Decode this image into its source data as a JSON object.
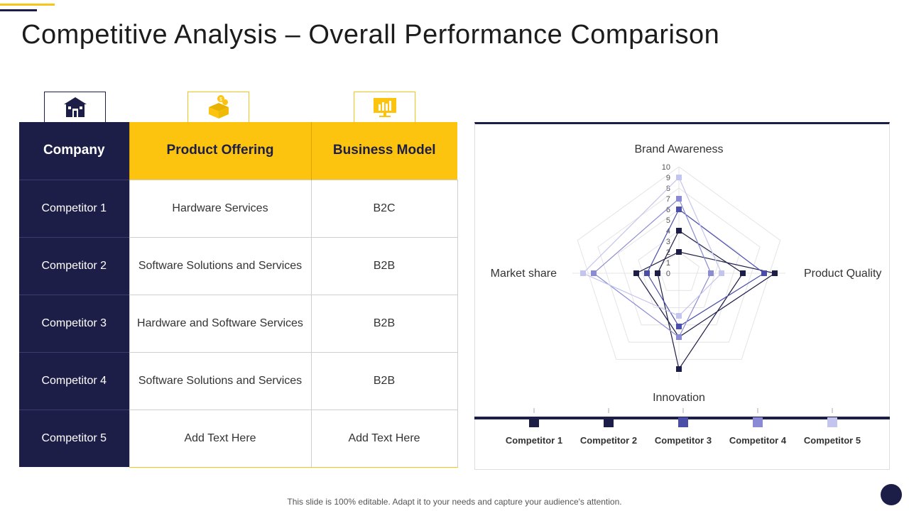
{
  "title": "Competitive Analysis – Overall Performance Comparison",
  "icons": [
    "building-icon",
    "money-box-icon",
    "chart-monitor-icon"
  ],
  "colors": {
    "navy": "#1d1e47",
    "yellow": "#fcc40f"
  },
  "table": {
    "headers": [
      "Company",
      "Product Offering",
      "Business Model"
    ],
    "rows": [
      [
        "Competitor 1",
        "Hardware Services",
        "B2C"
      ],
      [
        "Competitor 2",
        "Software Solutions and Services",
        "B2B"
      ],
      [
        "Competitor 3",
        "Hardware and Software Services",
        "B2B"
      ],
      [
        "Competitor 4",
        "Software Solutions and Services",
        "B2B"
      ],
      [
        "Competitor 5",
        "Add Text Here",
        "Add Text Here"
      ]
    ]
  },
  "chart_data": {
    "type": "radar",
    "axes": [
      "Brand Awareness",
      "Product Quality",
      "Innovation",
      "Market share"
    ],
    "scale": {
      "min": 0,
      "max": 10,
      "ticks": [
        "0",
        "1",
        "2",
        "3",
        "4",
        "5",
        "6",
        "7",
        "8",
        "9",
        "10"
      ]
    },
    "legend_position": "bottom",
    "series": [
      {
        "name": "Competitor 1",
        "color": "#1d1e47",
        "values": [
          4,
          6,
          9,
          2
        ]
      },
      {
        "name": "Competitor 2",
        "color": "#1d1e47",
        "values": [
          2,
          9,
          6,
          4
        ]
      },
      {
        "name": "Competitor 3",
        "color": "#4b4ea8",
        "values": [
          6,
          8,
          5,
          3
        ]
      },
      {
        "name": "Competitor 4",
        "color": "#8a8bd4",
        "values": [
          7,
          3,
          6,
          8
        ]
      },
      {
        "name": "Competitor 5",
        "color": "#c4c5ee",
        "values": [
          9,
          4,
          4,
          9
        ]
      }
    ]
  },
  "footer": "This slide is 100% editable. Adapt it to your needs and capture your audience's attention."
}
